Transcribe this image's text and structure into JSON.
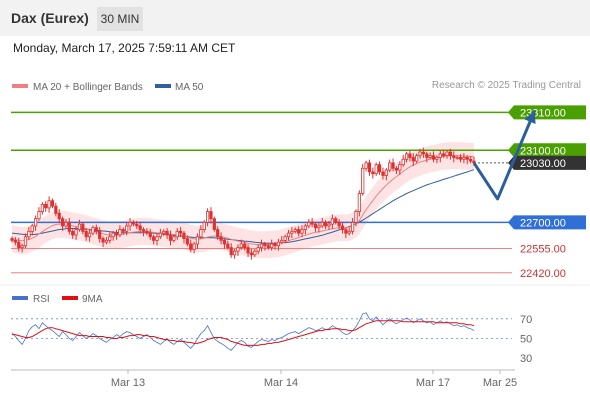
{
  "header": {
    "instrument": "Dax (Eurex)",
    "timeframe": "30 MIN",
    "datetime": "Monday, March 17, 2025 7:59:11 AM CET",
    "credit": "Research © 2025 Trading Central"
  },
  "colors": {
    "candle": "#e03030",
    "ma20": "#f08080",
    "bollinger_fill": "#fde0e0",
    "ma50": "#3060a0",
    "resistance": "#4aa000",
    "support": "#2f6fd6",
    "target_line": "#f08080",
    "last_price": "#333333",
    "arrow": "#2a5e9c",
    "rsi": "#4a70d0",
    "rsi_ma": "#e01010"
  },
  "chart_data": [
    {
      "type": "candlestick",
      "legend": [
        {
          "name": "MA 20 + Bollinger Bands",
          "color": "#f08080"
        },
        {
          "name": "MA 50",
          "color": "#3060a0"
        }
      ],
      "x_labels": [
        "Mar 13",
        "Mar 14",
        "Mar 17",
        "Mar 25"
      ],
      "ylim": [
        22380,
        23390
      ],
      "levels": [
        {
          "value": 23310,
          "label": "23310.00",
          "kind": "resistance"
        },
        {
          "value": 23100,
          "label": "23100.00",
          "kind": "resistance"
        },
        {
          "value": 22700,
          "label": "22700.00",
          "kind": "support"
        },
        {
          "value": 22555,
          "label": "22555.00",
          "kind": "target"
        },
        {
          "value": 22420,
          "label": "22420.00",
          "kind": "target"
        }
      ],
      "last_price": {
        "value": 23030,
        "label": "23030.00"
      },
      "close": [
        22600,
        22590,
        22560,
        22570,
        22620,
        22650,
        22680,
        22720,
        22760,
        22800,
        22780,
        22820,
        22790,
        22750,
        22720,
        22680,
        22700,
        22650,
        22630,
        22660,
        22690,
        22650,
        22620,
        22640,
        22670,
        22650,
        22610,
        22590,
        22600,
        22620,
        22640,
        22630,
        22660,
        22650,
        22680,
        22700,
        22690,
        22680,
        22660,
        22650,
        22640,
        22620,
        22600,
        22620,
        22640,
        22650,
        22630,
        22600,
        22620,
        22650,
        22640,
        22610,
        22580,
        22550,
        22580,
        22620,
        22660,
        22700,
        22760,
        22720,
        22660,
        22620,
        22600,
        22580,
        22560,
        22520,
        22540,
        22560,
        22580,
        22560,
        22530,
        22520,
        22540,
        22560,
        22580,
        22570,
        22560,
        22580,
        22570,
        22590,
        22600,
        22620,
        22640,
        22650,
        22660,
        22640,
        22660,
        22680,
        22700,
        22690,
        22670,
        22680,
        22700,
        22680,
        22690,
        22720,
        22700,
        22680,
        22660,
        22640,
        22650,
        22700,
        22760,
        22860,
        23000,
        23030,
        22980,
        22970,
        23020,
        22980,
        22960,
        22990,
        23030,
        23000,
        22990,
        23020,
        23050,
        23080,
        23060,
        23040,
        23070,
        23090,
        23080,
        23060,
        23070,
        23050,
        23060,
        23080,
        23070,
        23090,
        23070,
        23060,
        23060,
        23050,
        23060,
        23050,
        23040,
        23030
      ],
      "ma20": [
        22610,
        22605,
        22600,
        22598,
        22600,
        22605,
        22612,
        22622,
        22635,
        22648,
        22660,
        22672,
        22682,
        22688,
        22690,
        22690,
        22688,
        22684,
        22680,
        22676,
        22674,
        22670,
        22664,
        22658,
        22652,
        22648,
        22642,
        22636,
        22632,
        22630,
        22630,
        22630,
        22632,
        22634,
        22638,
        22642,
        22646,
        22648,
        22650,
        22650,
        22650,
        22648,
        22644,
        22642,
        22640,
        22638,
        22636,
        22634,
        22632,
        22630,
        22628,
        22624,
        22618,
        22612,
        22608,
        22606,
        22608,
        22612,
        22618,
        22622,
        22624,
        22622,
        22620,
        22616,
        22612,
        22606,
        22600,
        22596,
        22592,
        22588,
        22584,
        22580,
        22578,
        22576,
        22576,
        22576,
        22576,
        22578,
        22580,
        22582,
        22586,
        22592,
        22598,
        22604,
        22610,
        22616,
        22622,
        22628,
        22634,
        22640,
        22644,
        22648,
        22652,
        22656,
        22660,
        22664,
        22668,
        22670,
        22670,
        22670,
        22672,
        22680,
        22692,
        22710,
        22740,
        22770,
        22796,
        22820,
        22846,
        22868,
        22888,
        22906,
        22924,
        22940,
        22954,
        22968,
        22982,
        22996,
        23008,
        23018,
        23026,
        23034,
        23040,
        23046,
        23052,
        23056,
        23060,
        23064,
        23066,
        23068,
        23070,
        23070,
        23070,
        23069,
        23068,
        23067,
        23066,
        23064
      ],
      "ma50": [
        22640,
        22638,
        22636,
        22634,
        22632,
        22632,
        22632,
        22634,
        22636,
        22640,
        22644,
        22648,
        22652,
        22656,
        22660,
        22662,
        22664,
        22666,
        22666,
        22666,
        22666,
        22664,
        22662,
        22660,
        22658,
        22656,
        22654,
        22652,
        22650,
        22648,
        22646,
        22644,
        22642,
        22642,
        22642,
        22642,
        22642,
        22642,
        22642,
        22642,
        22642,
        22642,
        22640,
        22638,
        22636,
        22634,
        22632,
        22630,
        22628,
        22626,
        22624,
        22622,
        22620,
        22618,
        22616,
        22614,
        22614,
        22614,
        22614,
        22614,
        22614,
        22612,
        22610,
        22608,
        22606,
        22604,
        22602,
        22600,
        22598,
        22596,
        22594,
        22592,
        22590,
        22588,
        22586,
        22584,
        22584,
        22584,
        22584,
        22584,
        22586,
        22588,
        22590,
        22592,
        22596,
        22600,
        22604,
        22608,
        22612,
        22616,
        22620,
        22624,
        22628,
        22634,
        22640,
        22646,
        22652,
        22658,
        22664,
        22670,
        22676,
        22684,
        22692,
        22702,
        22712,
        22724,
        22736,
        22748,
        22760,
        22772,
        22784,
        22796,
        22808,
        22820,
        22830,
        22840,
        22850,
        22860,
        22868,
        22876,
        22884,
        22892,
        22900,
        22908,
        22914,
        22920,
        22926,
        22932,
        22938,
        22944,
        22950,
        22956,
        22962,
        22968,
        22974,
        22980,
        22986,
        22992
      ],
      "forecast_arrow": [
        {
          "step": 0,
          "value": 23030
        },
        {
          "step": 7,
          "value": 22830
        },
        {
          "step": 18,
          "value": 23320
        }
      ]
    },
    {
      "type": "line",
      "legend": [
        {
          "name": "RSI",
          "color": "#4a70d0"
        },
        {
          "name": "9MA",
          "color": "#e01010"
        }
      ],
      "y_ticks": [
        70,
        50,
        30
      ],
      "ylim": [
        20,
        80
      ],
      "rsi": [
        56,
        52,
        48,
        44,
        50,
        58,
        62,
        64,
        60,
        66,
        63,
        60,
        58,
        55,
        52,
        57,
        54,
        50,
        48,
        52,
        56,
        53,
        50,
        52,
        55,
        53,
        50,
        48,
        46,
        49,
        51,
        54,
        52,
        55,
        57,
        56,
        54,
        52,
        50,
        52,
        54,
        51,
        48,
        46,
        44,
        47,
        49,
        46,
        44,
        47,
        49,
        46,
        43,
        40,
        44,
        50,
        55,
        58,
        63,
        56,
        50,
        47,
        45,
        43,
        40,
        38,
        42,
        46,
        48,
        46,
        42,
        41,
        44,
        47,
        49,
        48,
        47,
        49,
        48,
        50,
        51,
        53,
        55,
        56,
        57,
        55,
        57,
        59,
        61,
        60,
        58,
        59,
        61,
        59,
        60,
        63,
        61,
        59,
        56,
        54,
        55,
        58,
        62,
        68,
        75,
        76,
        70,
        68,
        72,
        68,
        64,
        67,
        70,
        67,
        65,
        67,
        69,
        71,
        69,
        66,
        68,
        70,
        68,
        66,
        67,
        64,
        66,
        68,
        66,
        67,
        65,
        63,
        64,
        62,
        63,
        61,
        60,
        58
      ],
      "ma9": [
        54,
        54,
        53,
        52,
        51,
        51,
        52,
        54,
        56,
        58,
        60,
        61,
        61,
        60,
        59,
        58,
        57,
        56,
        55,
        54,
        53,
        53,
        53,
        52,
        52,
        52,
        52,
        52,
        51,
        51,
        50,
        50,
        51,
        51,
        52,
        53,
        53,
        54,
        54,
        53,
        53,
        52,
        52,
        51,
        50,
        49,
        49,
        48,
        48,
        47,
        47,
        47,
        46,
        46,
        45,
        45,
        46,
        47,
        49,
        50,
        51,
        51,
        51,
        50,
        49,
        47,
        46,
        45,
        44,
        43,
        43,
        43,
        43,
        43,
        44,
        44,
        45,
        45,
        46,
        46,
        47,
        48,
        49,
        50,
        51,
        52,
        53,
        54,
        55,
        56,
        57,
        58,
        58,
        59,
        59,
        60,
        60,
        60,
        59,
        59,
        58,
        58,
        59,
        61,
        63,
        65,
        66,
        67,
        68,
        68,
        68,
        68,
        68,
        68,
        68,
        68,
        67,
        67,
        67,
        67,
        67,
        67,
        67,
        67,
        67,
        67,
        66,
        66,
        66,
        66,
        66,
        66,
        66,
        65,
        65,
        64,
        64,
        63
      ],
      "x_labels": [
        "Mar 13",
        "Mar 14",
        "Mar 17",
        "Mar 25"
      ]
    }
  ]
}
